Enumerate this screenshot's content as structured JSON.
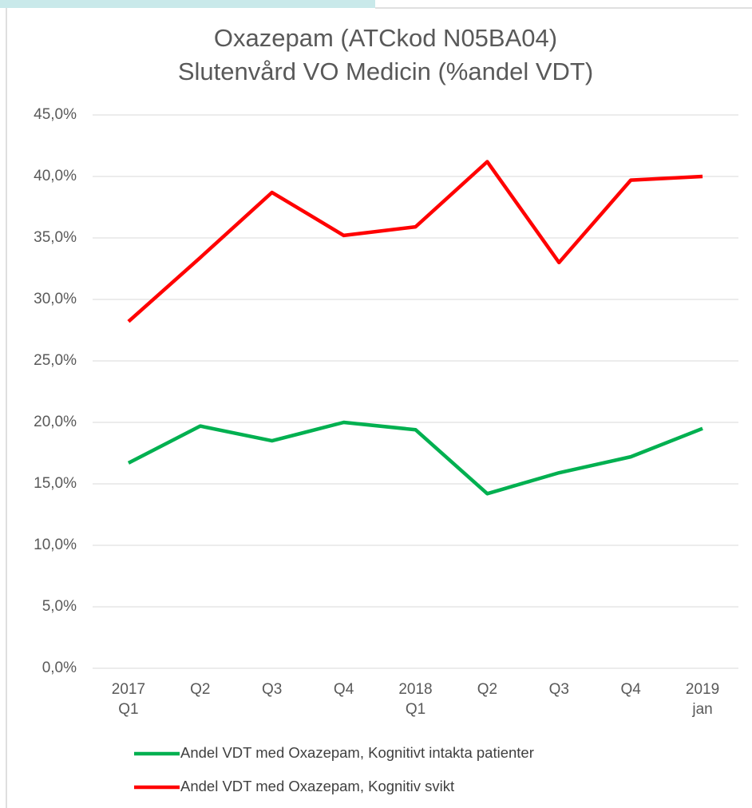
{
  "chart_data": {
    "type": "line",
    "title": [
      "Oxazepam (ATCkod N05BA04)",
      "Slutenvård VO Medicin (%andel VDT)"
    ],
    "categories": [
      [
        "2017",
        "Q1"
      ],
      [
        "Q2"
      ],
      [
        "Q3"
      ],
      [
        "Q4"
      ],
      [
        "2018",
        "Q1"
      ],
      [
        "Q2"
      ],
      [
        "Q3"
      ],
      [
        "Q4"
      ],
      [
        "2019",
        "jan"
      ]
    ],
    "series": [
      {
        "name": "Andel VDT med Oxazepam, Kognitivt intakta patienter",
        "color": "#00b050",
        "values": [
          16.7,
          19.7,
          18.5,
          20.0,
          19.4,
          14.2,
          15.9,
          17.2,
          19.5
        ]
      },
      {
        "name": "Andel VDT med Oxazepam, Kognitiv svikt",
        "color": "#ff0000",
        "values": [
          28.2,
          33.4,
          38.7,
          35.2,
          35.9,
          41.2,
          33.0,
          39.7,
          40.0
        ]
      }
    ],
    "ylim": [
      0,
      45
    ],
    "yticks": [
      {
        "value": 0,
        "label": "0,0%"
      },
      {
        "value": 5,
        "label": "5,0%"
      },
      {
        "value": 10,
        "label": "10,0%"
      },
      {
        "value": 15,
        "label": "15,0%"
      },
      {
        "value": 20,
        "label": "20,0%"
      },
      {
        "value": 25,
        "label": "25,0%"
      },
      {
        "value": 30,
        "label": "30,0%"
      },
      {
        "value": 35,
        "label": "35,0%"
      },
      {
        "value": 40,
        "label": "40,0%"
      },
      {
        "value": 45,
        "label": "45,0%"
      }
    ],
    "grid": true,
    "legend": "bottom"
  }
}
